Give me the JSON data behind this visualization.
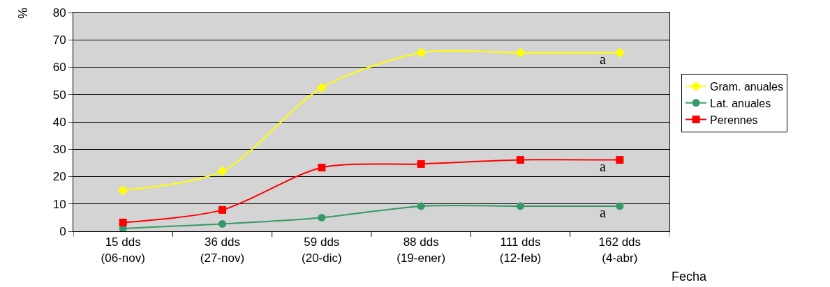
{
  "chart_data": {
    "type": "line",
    "xlabel": "Fecha",
    "ylabel": "%",
    "categories": [
      "15 dds\n(06-nov)",
      "36 dds\n(27-nov)",
      "59 dds\n(20-dic)",
      "88 dds\n(19-ener)",
      "111 dds\n(12-feb)",
      "162 dds\n(4-abr)"
    ],
    "series": [
      {
        "name": "Gram. anuales",
        "color": "#ffff00",
        "marker": "diamond",
        "values": [
          15,
          22,
          52.5,
          65.3,
          65.3,
          65.3
        ]
      },
      {
        "name": "Lat. anuales",
        "color": "#339966",
        "marker": "circle",
        "values": [
          1,
          2.7,
          5,
          9.2,
          9.2,
          9.2
        ]
      },
      {
        "name": "Perennes",
        "color": "#ff0000",
        "marker": "square",
        "values": [
          3.2,
          7.8,
          23.3,
          24.6,
          26.1,
          26.1
        ]
      }
    ],
    "ylim": [
      0,
      80
    ],
    "yticks": [
      0,
      10,
      20,
      30,
      40,
      50,
      60,
      70,
      80
    ],
    "grid": "y",
    "legend": "right",
    "annotations": [
      {
        "text": "a",
        "x": "162 dds\n(4-abr)",
        "y": 65.3
      },
      {
        "text": "a",
        "x": "162 dds\n(4-abr)",
        "y": 26.1
      },
      {
        "text": "a",
        "x": "162 dds\n(4-abr)",
        "y": 9.2
      }
    ]
  }
}
